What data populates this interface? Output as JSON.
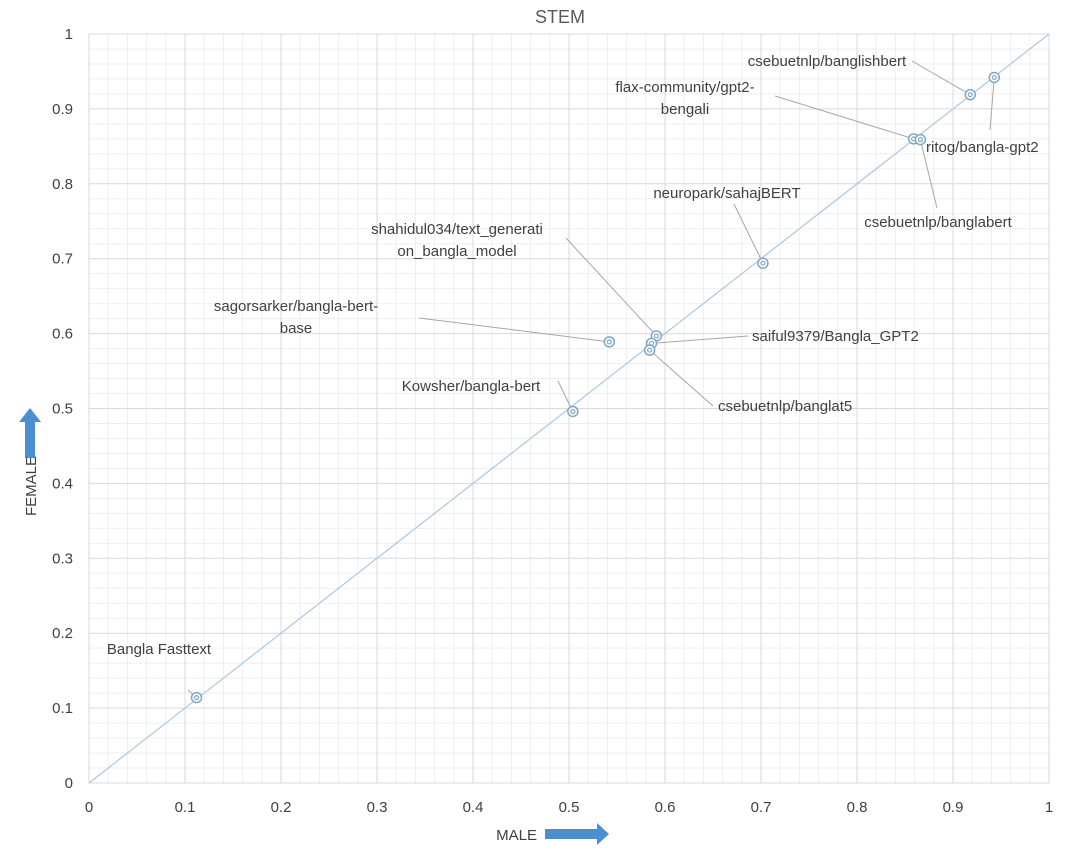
{
  "chart_data": {
    "type": "scatter",
    "title": "STEM",
    "xlabel": "MALE",
    "ylabel": "FEMALE",
    "xlim": [
      0,
      1
    ],
    "ylim": [
      0,
      1
    ],
    "major_ticks": [
      "0",
      "0.1",
      "0.2",
      "0.3",
      "0.4",
      "0.5",
      "0.6",
      "0.7",
      "0.8",
      "0.9",
      "1"
    ],
    "grid": "major and minor",
    "reference_line": {
      "from": [
        0,
        0
      ],
      "to": [
        1,
        1
      ]
    },
    "colors": {
      "marker": "#7ea6c9",
      "reference_line": "#a9c8e6",
      "major_grid": "#d9d9d9",
      "minor_grid": "#efefef",
      "arrow": "#4a8fd0",
      "leader": "#a6a6a6"
    },
    "points": [
      {
        "label": "Bangla Fasttext",
        "x": 0.112,
        "y": 0.114
      },
      {
        "label": "Kowsher/bangla-bert",
        "x": 0.504,
        "y": 0.496
      },
      {
        "label": "sagorsarker/bangla-bert-base",
        "x": 0.542,
        "y": 0.589
      },
      {
        "label": "shahidul034/text_generation_bangla_model",
        "x": 0.591,
        "y": 0.597
      },
      {
        "label": "saiful9379/Bangla_GPT2",
        "x": 0.586,
        "y": 0.587
      },
      {
        "label": "csebuetnlp/banglat5",
        "x": 0.584,
        "y": 0.578
      },
      {
        "label": "neuropark/sahajBERT",
        "x": 0.702,
        "y": 0.694
      },
      {
        "label": "flax-community/gpt2-bengali",
        "x": 0.859,
        "y": 0.86
      },
      {
        "label": "csebuetnlp/banglabert",
        "x": 0.866,
        "y": 0.859
      },
      {
        "label": "csebuetnlp/banglishbert",
        "x": 0.918,
        "y": 0.919
      },
      {
        "label": "ritog/bangla-gpt2",
        "x": 0.943,
        "y": 0.942
      }
    ],
    "label_lines": [
      [
        "Bangla Fasttext"
      ],
      [
        "Kowsher/bangla-bert"
      ],
      [
        "sagorsarker/bangla-bert-",
        "base"
      ],
      [
        "shahidul034/text_generati",
        "on_bangla_model"
      ],
      [
        "saiful9379/Bangla_GPT2"
      ],
      [
        "csebuetnlp/banglat5"
      ],
      [
        "neuropark/sahajBERT"
      ],
      [
        "flax-community/gpt2-",
        "bengali"
      ],
      [
        "csebuetnlp/banglabert"
      ],
      [
        "csebuetnlp/banglishbert"
      ],
      [
        "ritog/bangla-gpt2"
      ]
    ]
  }
}
